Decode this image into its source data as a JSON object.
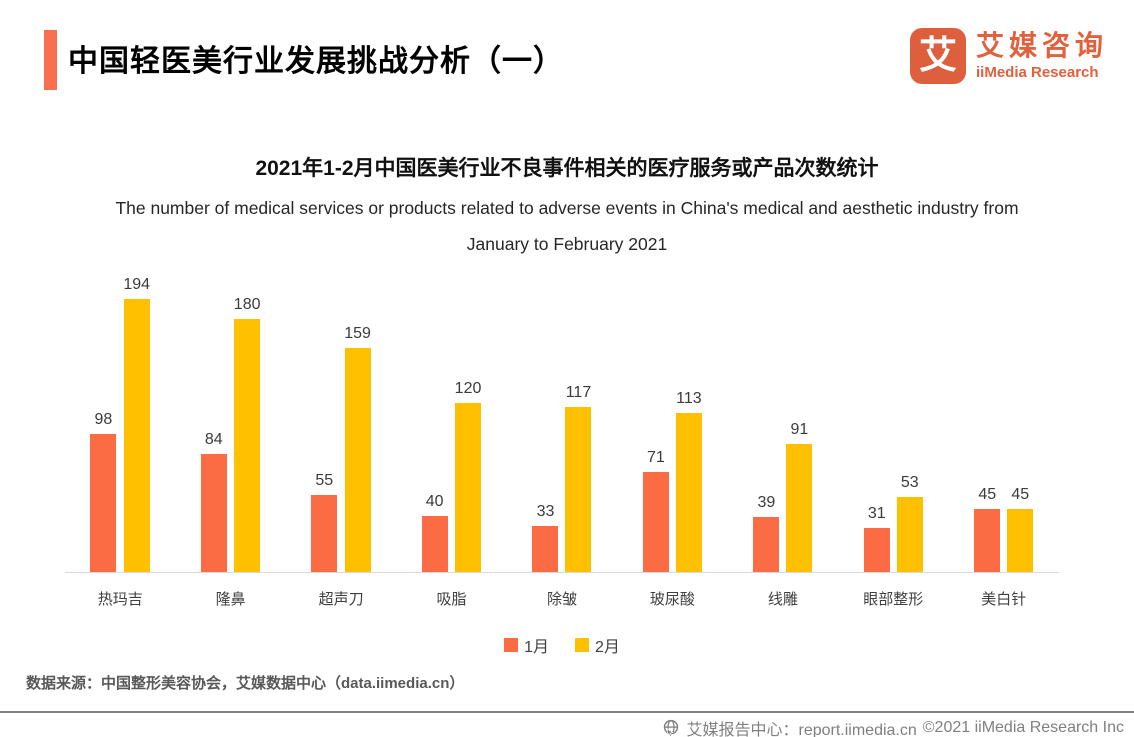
{
  "header": {
    "title": "中国轻医美行业发展挑战分析（一）",
    "logo": {
      "icon_char": "艾",
      "brand_cn": "艾媒咨询",
      "brand_en": "iiMedia Research",
      "brand_color": "#E2603C"
    }
  },
  "chart_data": {
    "type": "bar",
    "title": "2021年1-2月中国医美行业不良事件相关的医疗服务或产品次数统计",
    "subtitle_en": "The number of medical services or products related to adverse events in China's medical and aesthetic industry from January to February 2021",
    "categories": [
      "热玛吉",
      "隆鼻",
      "超声刀",
      "吸脂",
      "除皱",
      "玻尿酸",
      "线雕",
      "眼部整形",
      "美白针"
    ],
    "series": [
      {
        "name": "1月",
        "color": "#FB6C45",
        "values": [
          98,
          84,
          55,
          40,
          33,
          71,
          39,
          31,
          45
        ]
      },
      {
        "name": "2月",
        "color": "#FFC000",
        "values": [
          194,
          180,
          159,
          120,
          117,
          113,
          91,
          53,
          45
        ]
      }
    ],
    "ylim": [
      0,
      194
    ],
    "grid": false,
    "data_labels": true,
    "legend_position": "bottom",
    "axis_line_color": "#D9D9D9"
  },
  "source": "数据来源：中国整形美容协会，艾媒数据中心（data.iimedia.cn）",
  "footer": {
    "report_center": "艾媒报告中心：report.iimedia.cn",
    "copyright": "©2021  iiMedia Research Inc"
  }
}
